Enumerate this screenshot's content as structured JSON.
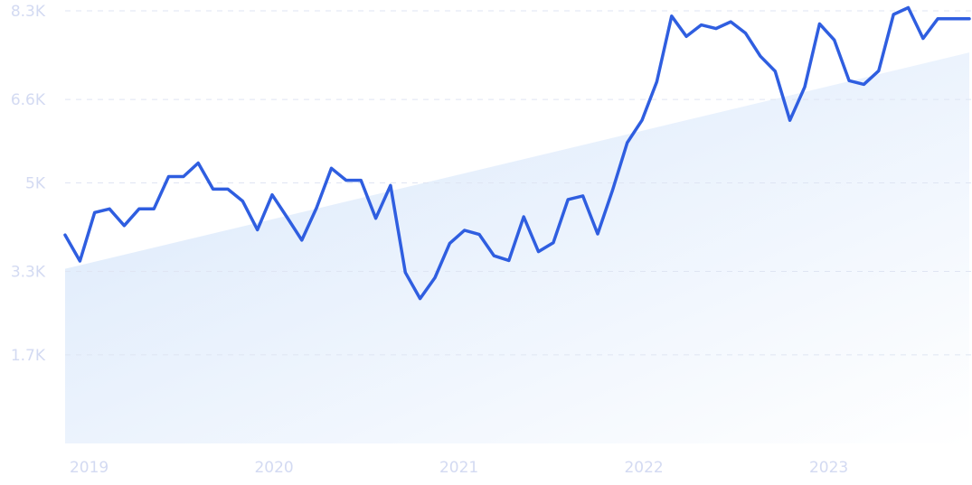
{
  "chart_data": {
    "type": "line",
    "title": "",
    "xlabel": "",
    "ylabel": "",
    "grid": true,
    "colors": {
      "line": "#2f5ee0",
      "grid": "#dfe5f3",
      "tick_text": "#d3daf2",
      "trend_fill_start": "#d8e7fb",
      "trend_fill_end": "#ffffff"
    },
    "ylim": [
      0,
      8300
    ],
    "y_ticks": [
      {
        "value": 1700,
        "label": "1.7K"
      },
      {
        "value": 3300,
        "label": "3.3K"
      },
      {
        "value": 5000,
        "label": "5K"
      },
      {
        "value": 6600,
        "label": "6.6K"
      },
      {
        "value": 8300,
        "label": "8.3K"
      }
    ],
    "xlim": [
      2018.86,
      2023.75
    ],
    "x_ticks": [
      {
        "value": 2019.0,
        "label": "2019"
      },
      {
        "value": 2020.0,
        "label": "2020"
      },
      {
        "value": 2021.0,
        "label": "2021"
      },
      {
        "value": 2022.0,
        "label": "2022"
      },
      {
        "value": 2023.0,
        "label": "2023"
      }
    ],
    "trend": {
      "x": [
        2018.86,
        2023.75
      ],
      "y": [
        3350,
        7500
      ]
    },
    "series": [
      {
        "x": [
          2018.86,
          2018.94,
          2019.02,
          2019.1,
          2019.18,
          2019.26,
          2019.34,
          2019.42,
          2019.5,
          2019.58,
          2019.66,
          2019.74,
          2019.82,
          2019.9,
          2019.98,
          2020.06,
          2020.14,
          2020.22,
          2020.3,
          2020.38,
          2020.46,
          2020.54,
          2020.62,
          2020.7,
          2020.78,
          2020.86,
          2020.94,
          2021.02,
          2021.1,
          2021.18,
          2021.26,
          2021.34,
          2021.42,
          2021.5,
          2021.58,
          2021.66,
          2021.74,
          2021.82,
          2021.9,
          2021.98,
          2022.06,
          2022.14,
          2022.22,
          2022.3,
          2022.38,
          2022.46,
          2022.54,
          2022.62,
          2022.7,
          2022.78,
          2022.86,
          2022.94,
          2023.02,
          2023.1,
          2023.18,
          2023.26,
          2023.34,
          2023.42,
          2023.5,
          2023.58,
          2023.66,
          2023.75
        ],
        "y": [
          4000,
          3500,
          4430,
          4500,
          4180,
          4500,
          4500,
          5120,
          5120,
          5380,
          4880,
          4880,
          4650,
          4100,
          4770,
          4340,
          3900,
          4520,
          5280,
          5050,
          5050,
          4320,
          4950,
          3280,
          2780,
          3180,
          3840,
          4090,
          4010,
          3600,
          3510,
          4350,
          3680,
          3850,
          4680,
          4750,
          4020,
          4850,
          5770,
          6200,
          6940,
          8200,
          7810,
          8030,
          7960,
          8090,
          7870,
          7430,
          7140,
          6200,
          6840,
          8050,
          7740,
          6960,
          6890,
          7150,
          8230,
          8360,
          7770,
          8150,
          8150,
          8150
        ]
      }
    ]
  }
}
